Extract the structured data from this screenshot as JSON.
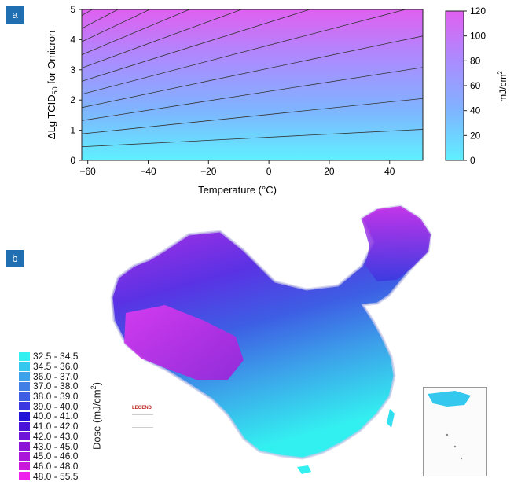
{
  "panels": {
    "a": "a",
    "b": "b"
  },
  "chart_data": [
    {
      "type": "heatmap",
      "xlabel": "Temperature (°C)",
      "ylabel_main": "ΔLg TCID",
      "ylabel_sub": "50",
      "ylabel_tail": " for Omicron",
      "xlim": [
        -62,
        51
      ],
      "ylim": [
        0,
        5
      ],
      "x_ticks": [
        -60,
        -40,
        -20,
        0,
        20,
        40
      ],
      "y_ticks": [
        0,
        1,
        2,
        3,
        4,
        5
      ],
      "colorbar": {
        "label": "mJ/cm",
        "label_sup": "2",
        "range": [
          0,
          120
        ],
        "ticks": [
          0,
          20,
          40,
          60,
          80,
          100,
          120
        ],
        "colors": [
          "#5ff0ff",
          "#7fb4ff",
          "#aa8cff",
          "#e060f0"
        ]
      },
      "contour_lines": [
        {
          "y_at_-62": 0.45,
          "y_at_51": 1.03
        },
        {
          "y_at_-62": 0.88,
          "y_at_51": 2.05
        },
        {
          "y_at_-62": 1.32,
          "y_at_51": 3.08
        },
        {
          "y_at_-62": 1.75,
          "y_at_51": 4.12
        },
        {
          "y_at_-62": 2.19,
          "y_at_51": 5.15
        },
        {
          "y_at_-62": 2.62,
          "y_at_51": 6.18
        },
        {
          "y_at_-62": 3.06,
          "y_at_51": 7.2
        },
        {
          "y_at_-62": 3.5,
          "y_at_51": 8.25
        },
        {
          "y_at_-62": 3.93,
          "y_at_51": 9.3
        },
        {
          "y_at_-62": 4.37,
          "y_at_51": 10.3
        },
        {
          "y_at_-62": 4.8,
          "y_at_51": 11.3
        }
      ]
    },
    {
      "type": "map",
      "legend_title": "Dose (mJ/cm",
      "legend_title_sup": "2",
      "legend_title_tail": ")",
      "classes": [
        {
          "label": "32.5 - 34.5",
          "color": "#33f0f0"
        },
        {
          "label": "34.5 - 36.0",
          "color": "#35c8ee"
        },
        {
          "label": "36.0 - 37.0",
          "color": "#3ca2ea"
        },
        {
          "label": "37.0 - 38.0",
          "color": "#3f7fe6"
        },
        {
          "label": "38.0 - 39.0",
          "color": "#3d5ee4"
        },
        {
          "label": "39.0 - 40.0",
          "color": "#3a36e0"
        },
        {
          "label": "40.0 - 41.0",
          "color": "#2313d8"
        },
        {
          "label": "41.0 - 42.0",
          "color": "#4a12d8"
        },
        {
          "label": "42.0 - 43.0",
          "color": "#6d14d8"
        },
        {
          "label": "43.0 - 45.0",
          "color": "#8d15d8"
        },
        {
          "label": "45.0 - 46.0",
          "color": "#aa15d9"
        },
        {
          "label": "46.0 - 48.0",
          "color": "#c918dc"
        },
        {
          "label": "48.0 - 55.5",
          "color": "#ee22ec"
        }
      ],
      "map_legend": {
        "title": "LEGEND"
      }
    }
  ]
}
